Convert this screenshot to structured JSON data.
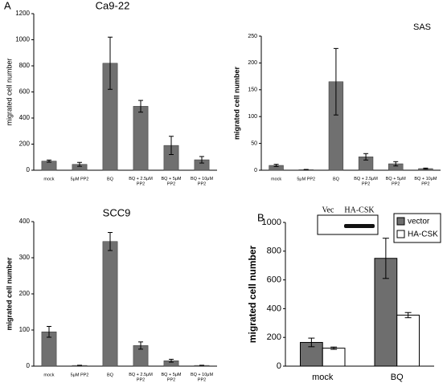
{
  "chart_data": [
    {
      "type": "bar",
      "panel": "A",
      "title": "Ca9-22",
      "y_label": "migrated cell number",
      "categories": [
        "mock",
        "5μM PP2",
        "BQ",
        "BQ + 2.5μM\nPP2",
        "BQ + 5μM\nPP2",
        "BQ + 10μM\nPP2"
      ],
      "values": [
        70,
        45,
        820,
        490,
        190,
        80
      ],
      "errors": [
        8,
        15,
        200,
        45,
        70,
        25
      ],
      "color": "#707070",
      "ylim": [
        0,
        1200
      ],
      "yticks": [
        0,
        200,
        400,
        600,
        800,
        1000,
        1200
      ]
    },
    {
      "type": "bar",
      "title": "SAS",
      "y_label": "migrated cell number",
      "categories": [
        "mock",
        "5μM PP2",
        "BQ",
        "BQ + 2.5μM\nPP2",
        "BQ + 5μM\nPP2",
        "BQ + 10μM\nPP2"
      ],
      "values": [
        9,
        1,
        165,
        25,
        12,
        3
      ],
      "errors": [
        2,
        0.5,
        62,
        6,
        4,
        1
      ],
      "color": "#707070",
      "ylim": [
        0,
        250
      ],
      "yticks": [
        0,
        50,
        100,
        150,
        200,
        250
      ]
    },
    {
      "type": "bar",
      "title": "SCC9",
      "y_label": "migrated cell number",
      "categories": [
        "mock",
        "5μM PP2",
        "BQ",
        "BQ + 2.5μM\nPP2",
        "BQ + 5μM\nPP2",
        "BQ + 10μM\nPP2"
      ],
      "values": [
        95,
        2,
        345,
        57,
        15,
        2
      ],
      "errors": [
        15,
        0.5,
        25,
        10,
        4,
        0.5
      ],
      "color": "#707070",
      "ylim": [
        0,
        400
      ],
      "yticks": [
        0,
        100,
        200,
        300,
        400
      ]
    },
    {
      "type": "grouped_bar",
      "panel": "B",
      "y_label": "migrated cell number",
      "inset_labels": [
        "Vec",
        "HA-CSK"
      ],
      "categories": [
        "mock",
        "BQ"
      ],
      "series": [
        {
          "name": "vector",
          "color": "#6e6e6e",
          "values": [
            165,
            750
          ],
          "errors": [
            30,
            140
          ]
        },
        {
          "name": "HA-CSK",
          "color": "#ffffff",
          "values": [
            125,
            355
          ],
          "errors": [
            8,
            18
          ]
        }
      ],
      "legend": "top-right",
      "ylim": [
        0,
        1000
      ],
      "yticks": [
        0,
        200,
        400,
        600,
        800,
        1000
      ]
    }
  ]
}
